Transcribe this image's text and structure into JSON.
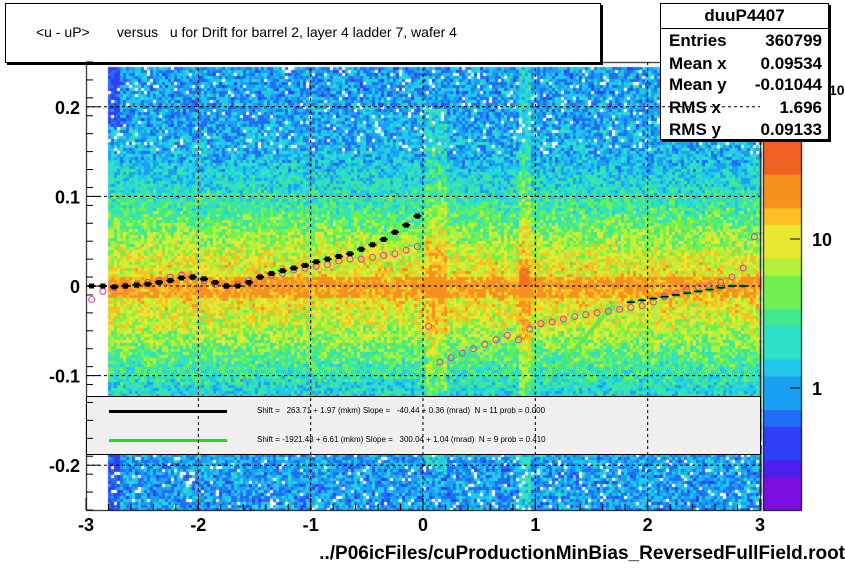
{
  "title": "<u - uP>       versus   u for Drift for barrel 2, layer 4 ladder 7, wafer 4",
  "footer": "../P06icFiles/cuProductionMinBias_ReversedFullField.root",
  "stats": {
    "name": "duuP4407",
    "rows": [
      {
        "label": "Entries",
        "value": "360799"
      },
      {
        "label": "Mean x",
        "value": "0.09534"
      },
      {
        "label": "Mean y",
        "value": "-0.01044"
      },
      {
        "label": "RMS x",
        "value": "1.696"
      },
      {
        "label": "RMS y",
        "value": "0.09133"
      }
    ]
  },
  "legend": [
    {
      "text": "Shift =   263.71 + 1.97 (mkm) Slope =   -40.44 + 0.36 (mrad)  N = 11 prob = 0.000",
      "color": "#000000"
    },
    {
      "text": "Shift = -1921.48 + 6.61 (mkm) Slope =   300.04 + 1.04 (mrad)  N = 9 prob = 0.410",
      "color": "#22dd22"
    }
  ],
  "chart_data": {
    "type": "heatmap",
    "xlim": [
      -3,
      3
    ],
    "ylim": [
      -0.25,
      0.25
    ],
    "x_ticks": [
      "-3",
      "-2",
      "-1",
      "0",
      "1",
      "2",
      "3"
    ],
    "y_ticks": [
      "-0.2",
      "-0.1",
      "0",
      "0.1",
      "0.2"
    ],
    "y_tick_values": [
      -0.2,
      -0.1,
      0,
      0.1,
      0.2
    ],
    "colorbar": {
      "ticks": [
        "1",
        "10",
        "10^2"
      ],
      "scale": "log"
    },
    "grid": true,
    "profile_black": {
      "x": [
        -2.95,
        -2.85,
        -2.75,
        -2.65,
        -2.55,
        -2.45,
        -2.35,
        -2.25,
        -2.15,
        -2.05,
        -1.95,
        -1.85,
        -1.75,
        -1.65,
        -1.55,
        -1.45,
        -1.35,
        -1.25,
        -1.15,
        -1.05,
        -0.95,
        -0.85,
        -0.75,
        -0.65,
        -0.55,
        -0.45,
        -0.35,
        -0.25,
        -0.15,
        -0.05
      ],
      "y": [
        0.0,
        0.0,
        -0.001,
        0.0,
        0.001,
        0.002,
        0.004,
        0.006,
        0.009,
        0.01,
        0.008,
        0.004,
        0.0,
        0.0,
        0.004,
        0.01,
        0.014,
        0.017,
        0.02,
        0.023,
        0.027,
        0.03,
        0.033,
        0.036,
        0.041,
        0.046,
        0.052,
        0.06,
        0.068,
        0.078
      ]
    },
    "profile_open": {
      "x": [
        -2.95,
        -2.85,
        -2.75,
        -2.65,
        -2.55,
        -2.45,
        -2.35,
        -2.25,
        -2.15,
        -2.05,
        -1.95,
        -1.85,
        -1.75,
        -1.65,
        -1.55,
        -1.45,
        -1.35,
        -1.25,
        -1.15,
        -1.05,
        -0.95,
        -0.85,
        -0.75,
        -0.65,
        -0.55,
        -0.45,
        -0.35,
        -0.25,
        -0.15,
        -0.05,
        0.05,
        0.15,
        0.25,
        0.35,
        0.45,
        0.55,
        0.65,
        0.75,
        0.85,
        0.95,
        1.05,
        1.15,
        1.25,
        1.35,
        1.45,
        1.55,
        1.65,
        1.75,
        1.85,
        1.95,
        2.05,
        2.15,
        2.25,
        2.35,
        2.45,
        2.55,
        2.65,
        2.75,
        2.85,
        2.95
      ],
      "y": [
        -0.015,
        -0.006,
        -0.002,
        0.0,
        0.002,
        0.004,
        0.006,
        0.01,
        0.012,
        0.01,
        0.006,
        0.002,
        0.0,
        0.002,
        0.006,
        0.01,
        0.012,
        0.014,
        0.018,
        0.02,
        0.022,
        0.024,
        0.028,
        0.03,
        0.03,
        0.032,
        0.034,
        0.036,
        0.04,
        0.044,
        -0.045,
        -0.085,
        -0.08,
        -0.075,
        -0.07,
        -0.065,
        -0.06,
        -0.055,
        -0.06,
        -0.048,
        -0.042,
        -0.04,
        -0.037,
        -0.034,
        -0.032,
        -0.03,
        -0.028,
        -0.026,
        -0.024,
        -0.022,
        -0.018,
        -0.012,
        -0.008,
        -0.004,
        -0.001,
        0.0,
        0.004,
        0.01,
        0.02,
        0.055
      ]
    },
    "profile_green": {
      "x": [
        1.85,
        1.95,
        2.05,
        2.15,
        2.25,
        2.35,
        2.45,
        2.55,
        2.65,
        2.75,
        2.85
      ],
      "y": [
        -0.018,
        -0.016,
        -0.014,
        -0.012,
        -0.01,
        -0.008,
        -0.006,
        -0.004,
        -0.002,
        0.0,
        0.0
      ]
    }
  }
}
